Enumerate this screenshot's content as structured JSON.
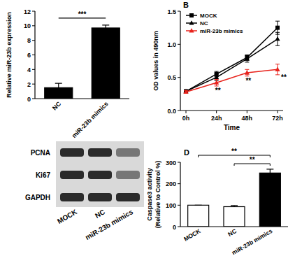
{
  "chart_data": [
    {
      "type": "bar",
      "categories": [
        "NC",
        "miR-23b mimics"
      ],
      "values": [
        1.5,
        9.7
      ],
      "errors": [
        0.6,
        0.4
      ],
      "color": "#000000",
      "y_label": "Relative miR-23b expression",
      "ylim": [
        0,
        12
      ],
      "yticks": [
        0,
        2,
        4,
        6,
        8,
        10,
        12
      ],
      "annotations": [
        "***"
      ]
    },
    {
      "type": "line",
      "title": "B",
      "categories": [
        "0h",
        "24h",
        "48h",
        "72h"
      ],
      "x_label": "Time",
      "y_label": "OD values in 490nm",
      "series": [
        {
          "name": "MOCK",
          "color": "#000000",
          "marker": "square",
          "values": [
            0.29,
            0.55,
            0.8,
            1.25
          ],
          "errors": [
            0.02,
            0.04,
            0.04,
            0.1
          ]
        },
        {
          "name": "NC",
          "color": "#000000",
          "marker": "triangle",
          "values": [
            0.29,
            0.5,
            0.78,
            1.08
          ],
          "errors": [
            0.02,
            0.05,
            0.05,
            0.1
          ]
        },
        {
          "name": "miR-23b mimics",
          "color": "#e8231c",
          "marker": "triangle",
          "values": [
            0.28,
            0.42,
            0.57,
            0.62
          ],
          "errors": [
            0.02,
            0.05,
            0.05,
            0.08
          ]
        }
      ],
      "ylim": [
        0,
        1.5
      ],
      "yticks": [
        {
          "value": 0,
          "label": "0.0"
        },
        {
          "value": 0.5,
          "label": "0.5"
        },
        {
          "value": 1,
          "label": "1.0"
        },
        {
          "value": 1.5,
          "label": "1.5"
        }
      ],
      "legend": "upper-left",
      "annotations": [
        "**",
        "**",
        "**"
      ]
    },
    {
      "type": "bar",
      "title": "D",
      "categories": [
        "MOCK",
        "NC",
        "miR-23b mimics"
      ],
      "values": [
        100,
        93,
        250
      ],
      "errors": [
        0,
        5,
        18
      ],
      "colors": [
        "#ffffff",
        "#ffffff",
        "#000000"
      ],
      "y_label": [
        "Caspase3 activity",
        "(Relative to Control %)"
      ],
      "ylim": [
        0,
        300
      ],
      "yticks": [
        0,
        100,
        200,
        300
      ],
      "annotations": [
        "**",
        "**"
      ]
    }
  ],
  "blot": {
    "rows": [
      "PCNA",
      "Ki67",
      "GAPDH"
    ],
    "lanes": [
      "MOCK",
      "NC",
      "miR-23b mimics"
    ]
  }
}
